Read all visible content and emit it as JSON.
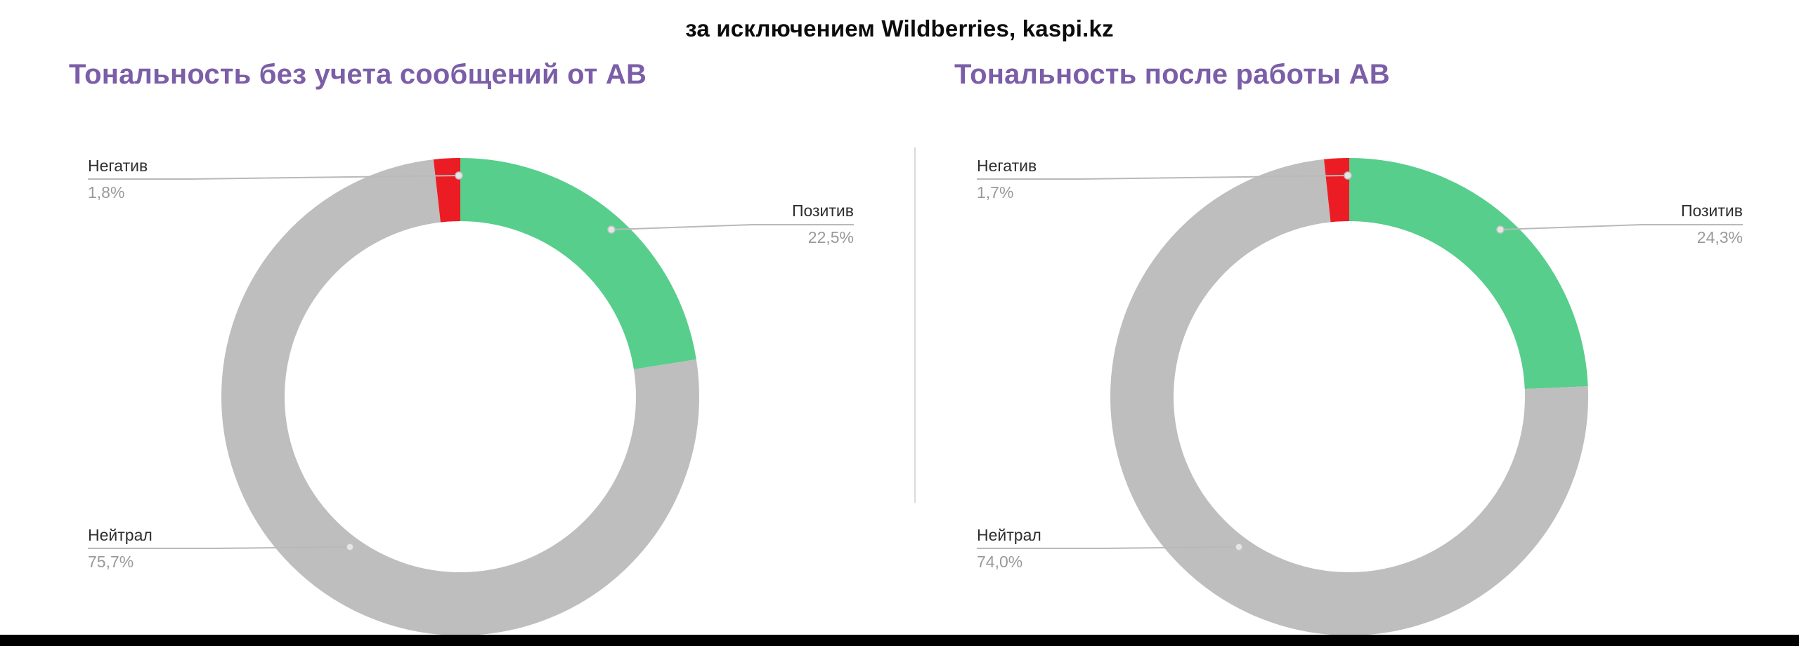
{
  "page": {
    "subtitle": "за исключением Wildberries, kaspi.kz"
  },
  "charts": [
    {
      "title": "Тональность без учета сообщений от АВ",
      "labels": {
        "negative": {
          "name": "Негатив",
          "value": "1,8%"
        },
        "positive": {
          "name": "Позитив",
          "value": "22,5%"
        },
        "neutral": {
          "name": "Нейтрал",
          "value": "75,7%"
        }
      }
    },
    {
      "title": "Тональность после работы АВ",
      "labels": {
        "negative": {
          "name": "Негатив",
          "value": "1,7%"
        },
        "positive": {
          "name": "Позитив",
          "value": "24,3%"
        },
        "neutral": {
          "name": "Нейтрал",
          "value": "74,0%"
        }
      }
    }
  ],
  "chart_data": [
    {
      "type": "pie",
      "donut": true,
      "title": "Тональность без учета сообщений от АВ",
      "categories": [
        "Позитив",
        "Нейтрал",
        "Негатив"
      ],
      "values": [
        22.5,
        75.7,
        1.8
      ],
      "colors": [
        "#57CE8C",
        "#BEBEBE",
        "#EC1C24"
      ],
      "start_angle_deg": -90,
      "direction": "clockwise",
      "legend_position": "callout-labels"
    },
    {
      "type": "pie",
      "donut": true,
      "title": "Тональность после работы АВ",
      "categories": [
        "Позитив",
        "Нейтрал",
        "Негатив"
      ],
      "values": [
        24.3,
        74.0,
        1.7
      ],
      "colors": [
        "#57CE8C",
        "#BEBEBE",
        "#EC1C24"
      ],
      "start_angle_deg": -90,
      "direction": "clockwise",
      "legend_position": "callout-labels"
    }
  ],
  "theme": {
    "positive_color": "#57CE8C",
    "neutral_color": "#BEBEBE",
    "negative_color": "#EC1C24",
    "title_color": "#7B5EA7"
  }
}
